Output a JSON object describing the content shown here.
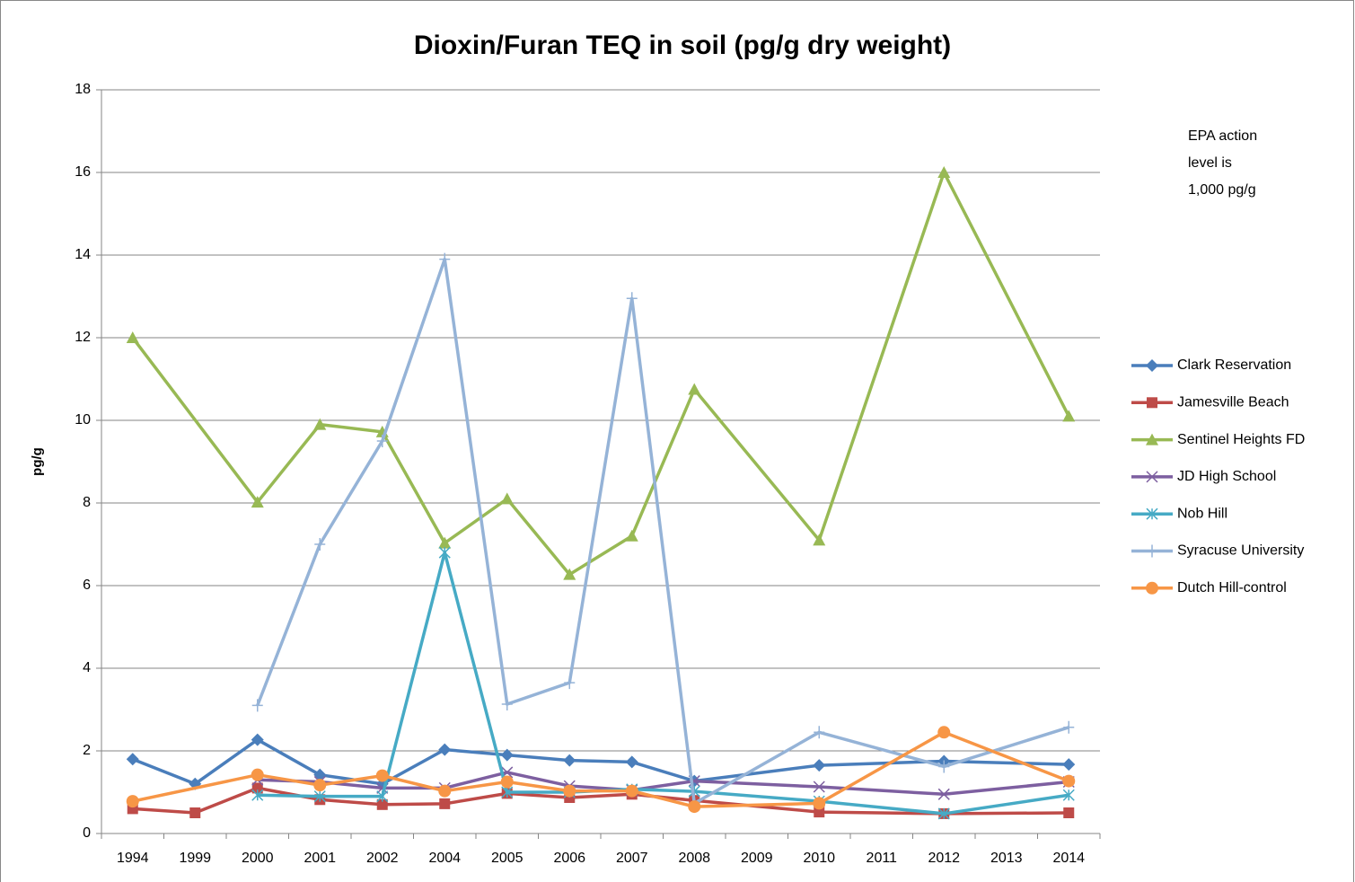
{
  "chart_data": {
    "type": "line",
    "title": "Dioxin/Furan TEQ in soil (pg/g dry weight)",
    "y_label": "pg/g",
    "annotation": [
      "EPA action",
      "level is",
      "1,000 pg/g"
    ],
    "categories": [
      "1994",
      "1999",
      "2000",
      "2001",
      "2002",
      "2004",
      "2005",
      "2006",
      "2007",
      "2008",
      "2009",
      "2010",
      "2011",
      "2012",
      "2013",
      "2014"
    ],
    "ylim": [
      0,
      18
    ],
    "yticks": [
      0,
      2,
      4,
      6,
      8,
      10,
      12,
      14,
      16,
      18
    ],
    "grid": true,
    "legend": "right",
    "span_gaps": true,
    "series": [
      {
        "name": "Clark Reservation",
        "color": "#4a7ebb",
        "marker": "diamond",
        "values": [
          1.8,
          1.2,
          2.27,
          1.42,
          1.2,
          2.03,
          1.9,
          1.77,
          1.73,
          1.27,
          null,
          1.65,
          null,
          1.75,
          null,
          1.67
        ]
      },
      {
        "name": "Jamesville Beach",
        "color": "#be4b48",
        "marker": "square",
        "values": [
          0.6,
          0.5,
          1.1,
          0.82,
          0.7,
          0.72,
          0.97,
          0.87,
          0.95,
          0.8,
          null,
          0.52,
          null,
          0.48,
          null,
          0.5
        ]
      },
      {
        "name": "Sentinel Heights FD",
        "color": "#98b954",
        "marker": "triangle",
        "values": [
          12,
          null,
          8.02,
          9.9,
          9.72,
          7.03,
          8.1,
          6.27,
          7.2,
          10.75,
          null,
          7.1,
          null,
          16,
          null,
          10.1
        ]
      },
      {
        "name": "JD High School",
        "color": "#7d5fa0",
        "marker": "x",
        "values": [
          null,
          null,
          1.3,
          1.25,
          1.1,
          1.1,
          1.48,
          1.15,
          1.05,
          1.27,
          null,
          1.13,
          null,
          0.95,
          null,
          1.25
        ]
      },
      {
        "name": "Nob Hill",
        "color": "#46aac5",
        "marker": "star",
        "values": [
          null,
          null,
          0.93,
          0.9,
          0.9,
          6.8,
          1.0,
          1.0,
          1.07,
          1.02,
          null,
          0.78,
          null,
          0.48,
          null,
          0.93
        ]
      },
      {
        "name": "Syracuse University",
        "color": "#95b3d7",
        "marker": "plus",
        "values": [
          null,
          null,
          3.1,
          7.0,
          9.5,
          13.9,
          3.13,
          3.65,
          12.95,
          0.73,
          null,
          2.45,
          null,
          1.62,
          null,
          2.57
        ]
      },
      {
        "name": "Dutch Hill-control",
        "color": "#f79646",
        "marker": "circle",
        "values": [
          0.78,
          null,
          1.42,
          1.17,
          1.4,
          1.03,
          1.25,
          1.03,
          1.03,
          0.65,
          null,
          0.73,
          null,
          2.45,
          null,
          1.27
        ]
      }
    ]
  }
}
